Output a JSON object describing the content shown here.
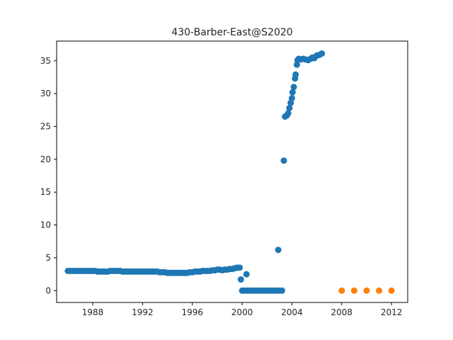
{
  "chart_data": {
    "type": "scatter",
    "title": "430-Barber-East@S2020",
    "xlabel": "",
    "ylabel": "",
    "x_ticks": [
      "1988",
      "1992",
      "1996",
      "2000",
      "2004",
      "2008",
      "2012"
    ],
    "y_ticks": [
      "0",
      "5",
      "10",
      "15",
      "20",
      "25",
      "30",
      "35"
    ],
    "xlim": [
      1985.1,
      2013.3
    ],
    "ylim": [
      -1.8,
      38.0
    ],
    "grid": false,
    "legend": "none",
    "series": [
      {
        "color": "#1f77b4",
        "points": [
          [
            1986.0,
            3.0
          ],
          [
            1986.2,
            3.0
          ],
          [
            1986.4,
            3.0
          ],
          [
            1986.6,
            3.0
          ],
          [
            1986.8,
            3.0
          ],
          [
            1987.0,
            3.0
          ],
          [
            1987.2,
            3.0
          ],
          [
            1987.4,
            3.0
          ],
          [
            1987.6,
            3.0
          ],
          [
            1987.8,
            3.0
          ],
          [
            1988.0,
            3.0
          ],
          [
            1988.2,
            3.0
          ],
          [
            1988.4,
            2.9
          ],
          [
            1988.6,
            2.9
          ],
          [
            1988.8,
            2.9
          ],
          [
            1989.0,
            2.9
          ],
          [
            1989.2,
            2.9
          ],
          [
            1989.4,
            3.0
          ],
          [
            1989.6,
            3.0
          ],
          [
            1989.8,
            3.0
          ],
          [
            1990.0,
            3.0
          ],
          [
            1990.2,
            3.0
          ],
          [
            1990.4,
            2.9
          ],
          [
            1990.6,
            2.9
          ],
          [
            1990.8,
            2.9
          ],
          [
            1991.0,
            2.9
          ],
          [
            1991.2,
            2.9
          ],
          [
            1991.4,
            2.9
          ],
          [
            1991.6,
            2.9
          ],
          [
            1991.8,
            2.9
          ],
          [
            1992.0,
            2.9
          ],
          [
            1992.2,
            2.9
          ],
          [
            1992.4,
            2.9
          ],
          [
            1992.6,
            2.9
          ],
          [
            1992.8,
            2.9
          ],
          [
            1993.0,
            2.9
          ],
          [
            1993.2,
            2.9
          ],
          [
            1993.4,
            2.8
          ],
          [
            1993.6,
            2.8
          ],
          [
            1993.8,
            2.8
          ],
          [
            1994.0,
            2.7
          ],
          [
            1994.2,
            2.7
          ],
          [
            1994.4,
            2.7
          ],
          [
            1994.6,
            2.7
          ],
          [
            1994.8,
            2.7
          ],
          [
            1995.0,
            2.7
          ],
          [
            1995.2,
            2.7
          ],
          [
            1995.4,
            2.7
          ],
          [
            1995.6,
            2.7
          ],
          [
            1995.8,
            2.8
          ],
          [
            1996.0,
            2.8
          ],
          [
            1996.2,
            2.9
          ],
          [
            1996.4,
            2.9
          ],
          [
            1996.6,
            2.9
          ],
          [
            1996.8,
            3.0
          ],
          [
            1997.0,
            3.0
          ],
          [
            1997.2,
            3.0
          ],
          [
            1997.4,
            3.0
          ],
          [
            1997.6,
            3.1
          ],
          [
            1997.8,
            3.1
          ],
          [
            1998.0,
            3.2
          ],
          [
            1998.2,
            3.2
          ],
          [
            1998.4,
            3.1
          ],
          [
            1998.6,
            3.2
          ],
          [
            1998.8,
            3.2
          ],
          [
            1999.0,
            3.3
          ],
          [
            1999.2,
            3.3
          ],
          [
            1999.4,
            3.4
          ],
          [
            1999.6,
            3.5
          ],
          [
            1999.8,
            3.5
          ],
          [
            1999.9,
            1.7
          ],
          [
            2000.0,
            0.0
          ],
          [
            2000.2,
            0.0
          ],
          [
            2000.35,
            2.5
          ],
          [
            2000.4,
            0.0
          ],
          [
            2000.6,
            0.0
          ],
          [
            2000.8,
            0.0
          ],
          [
            2001.0,
            0.0
          ],
          [
            2001.2,
            0.0
          ],
          [
            2001.4,
            0.0
          ],
          [
            2001.6,
            0.0
          ],
          [
            2001.8,
            0.0
          ],
          [
            2002.0,
            0.0
          ],
          [
            2002.2,
            0.0
          ],
          [
            2002.4,
            0.0
          ],
          [
            2002.6,
            0.0
          ],
          [
            2002.8,
            0.0
          ],
          [
            2002.9,
            6.2
          ],
          [
            2003.0,
            0.0
          ],
          [
            2003.2,
            0.0
          ],
          [
            2003.35,
            19.8
          ],
          [
            2003.45,
            26.5
          ],
          [
            2003.6,
            26.7
          ],
          [
            2003.7,
            27.0
          ],
          [
            2003.8,
            27.8
          ],
          [
            2003.9,
            28.6
          ],
          [
            2004.0,
            29.3
          ],
          [
            2004.05,
            30.2
          ],
          [
            2004.15,
            31.0
          ],
          [
            2004.25,
            32.3
          ],
          [
            2004.3,
            32.9
          ],
          [
            2004.4,
            34.4
          ],
          [
            2004.45,
            35.1
          ],
          [
            2004.55,
            35.3
          ],
          [
            2004.7,
            35.2
          ],
          [
            2004.9,
            35.3
          ],
          [
            2005.1,
            35.2
          ],
          [
            2005.3,
            35.1
          ],
          [
            2005.5,
            35.3
          ],
          [
            2005.65,
            35.5
          ],
          [
            2005.8,
            35.4
          ],
          [
            2006.0,
            35.8
          ],
          [
            2006.2,
            35.9
          ],
          [
            2006.4,
            36.1
          ]
        ]
      },
      {
        "color": "#ff7f0e",
        "points": [
          [
            2008.0,
            0.0
          ],
          [
            2009.0,
            0.0
          ],
          [
            2010.0,
            0.0
          ],
          [
            2011.0,
            0.0
          ],
          [
            2012.0,
            0.0
          ]
        ]
      }
    ]
  }
}
